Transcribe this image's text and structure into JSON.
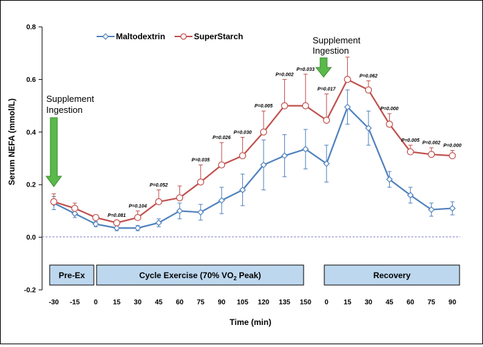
{
  "colors": {
    "maltodextrin": "#4f81bd",
    "superstarch": "#c0504d",
    "phase_fill": "#bdd7ee",
    "arrow": "#59b94a",
    "zero_line": "#7f7fcc"
  },
  "chart_data": {
    "type": "line",
    "title": "",
    "xlabel": "Time (min)",
    "ylabel": "Serum NEFA (mmol/L)",
    "ylim": [
      -0.2,
      0.8
    ],
    "yticks": [
      "-0.2",
      "0.0",
      "0.2",
      "0.4",
      "0.6",
      "0.8"
    ],
    "categories": [
      "-30",
      "-15",
      "0",
      "15",
      "30",
      "45",
      "60",
      "75",
      "90",
      "105",
      "120",
      "135",
      "150",
      "0",
      "15",
      "30",
      "45",
      "60",
      "75",
      "90"
    ],
    "legend_position": "top-left",
    "series": [
      {
        "name": "Maltodextrin",
        "marker": "diamond",
        "values": [
          0.13,
          0.09,
          0.05,
          0.035,
          0.035,
          0.055,
          0.1,
          0.095,
          0.14,
          0.18,
          0.275,
          0.31,
          0.335,
          0.28,
          0.495,
          0.415,
          0.22,
          0.16,
          0.105,
          0.11
        ],
        "errors": [
          0.025,
          0.015,
          0.01,
          0.01,
          0.01,
          0.015,
          0.03,
          0.03,
          0.05,
          0.06,
          0.095,
          0.08,
          0.075,
          0.07,
          0.065,
          0.065,
          0.03,
          0.03,
          0.025,
          0.025
        ]
      },
      {
        "name": "SuperStarch",
        "marker": "circle",
        "values": [
          0.135,
          0.11,
          0.075,
          0.055,
          0.075,
          0.135,
          0.15,
          0.21,
          0.275,
          0.31,
          0.4,
          0.5,
          0.5,
          0.445,
          0.6,
          0.56,
          0.43,
          0.325,
          0.315,
          0.31
        ],
        "errors": [
          0.03,
          0.02,
          0.01,
          0.01,
          0.025,
          0.045,
          0.045,
          0.065,
          0.085,
          0.07,
          0.08,
          0.1,
          0.12,
          0.1,
          0.085,
          0.035,
          0.04,
          0.025,
          0.025,
          0.02
        ]
      }
    ],
    "p_values": [
      {
        "index": 3,
        "label": "P=0.081"
      },
      {
        "index": 4,
        "label": "P=0.104"
      },
      {
        "index": 5,
        "label": "P=0.052"
      },
      {
        "index": 7,
        "label": "P=0.035"
      },
      {
        "index": 8,
        "label": "P=0.026"
      },
      {
        "index": 9,
        "label": "P=0.030"
      },
      {
        "index": 10,
        "label": "P=0.005"
      },
      {
        "index": 11,
        "label": "P=0.002"
      },
      {
        "index": 12,
        "label": "P=0.033"
      },
      {
        "index": 13,
        "label": "P=0.017"
      },
      {
        "index": 15,
        "label": "P=0.062"
      },
      {
        "index": 16,
        "label": "P=0.000"
      },
      {
        "index": 17,
        "label": "P=0.005"
      },
      {
        "index": 18,
        "label": "P=0.002"
      },
      {
        "index": 19,
        "label": "P=0.000"
      }
    ],
    "annotations": [
      {
        "lines": [
          "Supplement",
          "Ingestion"
        ],
        "index": 0
      },
      {
        "lines": [
          "Supplement",
          "Ingestion"
        ],
        "index": 13
      }
    ],
    "phases": [
      "Pre-Ex",
      "Cycle Exercise (70% VO",
      "2",
      " Peak)",
      "Recovery"
    ]
  }
}
